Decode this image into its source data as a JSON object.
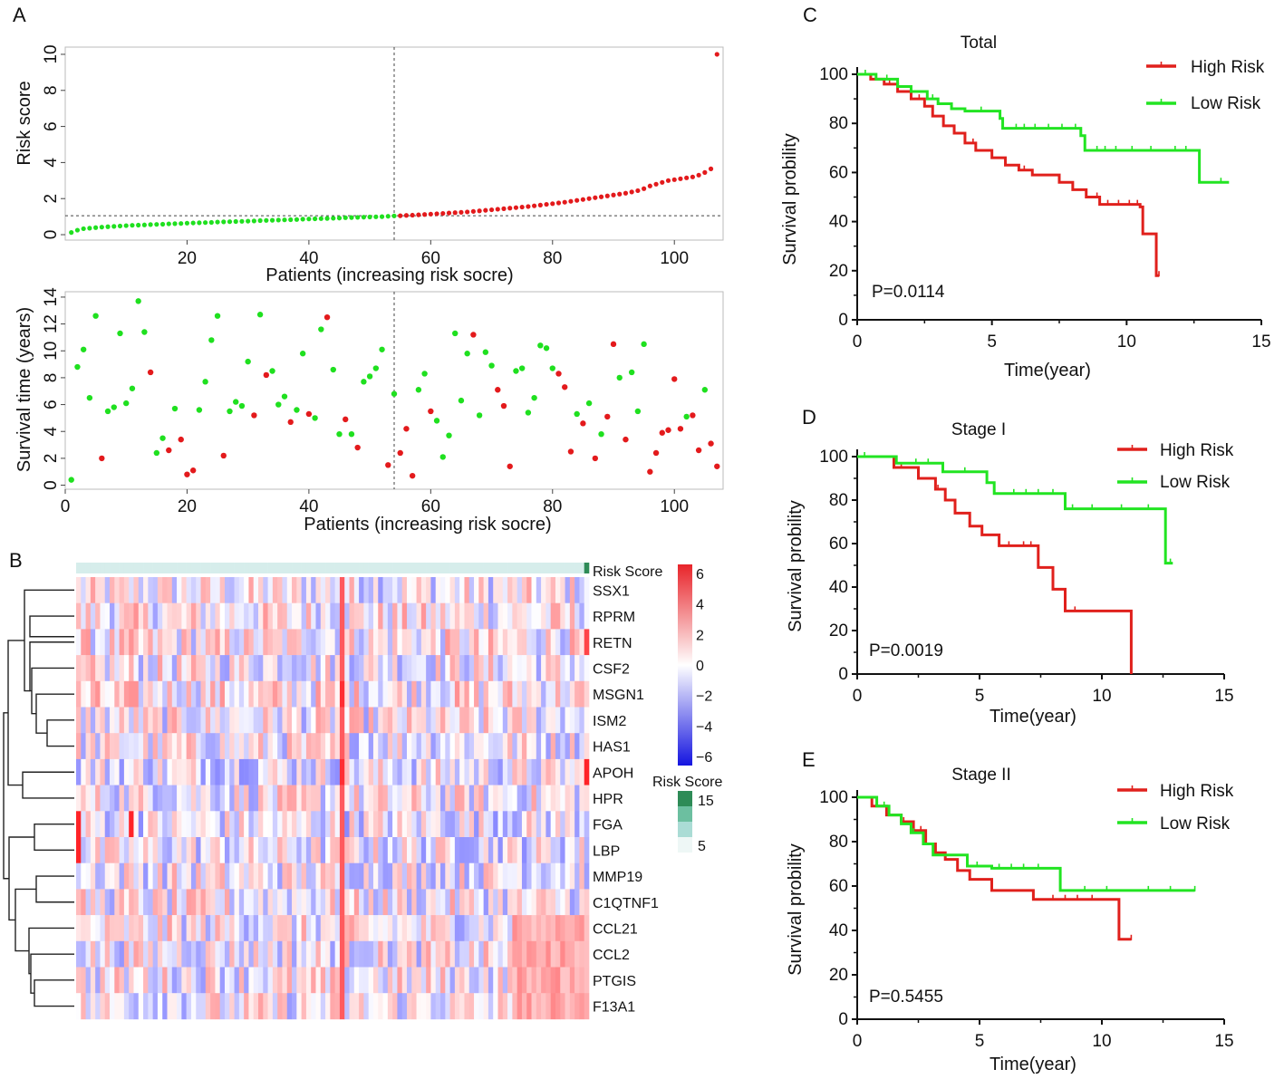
{
  "colors": {
    "high": "#e31a1c",
    "low": "#1fe01f",
    "km_high": "#e0201c",
    "km_low": "#22e422",
    "axis": "#222222",
    "heat_hi": "#e8242a",
    "heat_mid": "#ffffff",
    "heat_lo": "#1414e0",
    "rs_dark": "#2e8b57",
    "rs_light": "#eef7f6"
  },
  "panel_labels": [
    "A",
    "B",
    "C",
    "D",
    "E"
  ],
  "chart_data": [
    {
      "id": "A1",
      "type": "scatter",
      "xlabel": "Patients (increasing risk socre)",
      "ylabel": "Risk score",
      "xlim": [
        0,
        108
      ],
      "ylim": [
        -0.3,
        10.4
      ],
      "xticks": [
        20,
        40,
        60,
        80,
        100
      ],
      "yticks": [
        0,
        2,
        4,
        6,
        8,
        10
      ],
      "cutoff": {
        "x": 54,
        "y": 1.05
      },
      "low_count": 54,
      "risk_values": [
        0.12,
        0.25,
        0.33,
        0.36,
        0.39,
        0.42,
        0.44,
        0.46,
        0.48,
        0.5,
        0.52,
        0.53,
        0.54,
        0.56,
        0.57,
        0.58,
        0.6,
        0.61,
        0.62,
        0.64,
        0.65,
        0.66,
        0.67,
        0.68,
        0.7,
        0.71,
        0.72,
        0.73,
        0.74,
        0.75,
        0.76,
        0.78,
        0.79,
        0.8,
        0.81,
        0.82,
        0.83,
        0.84,
        0.86,
        0.87,
        0.88,
        0.89,
        0.9,
        0.91,
        0.92,
        0.94,
        0.95,
        0.96,
        0.97,
        0.98,
        0.99,
        1.0,
        1.02,
        1.04,
        1.05,
        1.07,
        1.08,
        1.1,
        1.12,
        1.14,
        1.16,
        1.18,
        1.2,
        1.22,
        1.24,
        1.26,
        1.29,
        1.32,
        1.35,
        1.38,
        1.41,
        1.44,
        1.47,
        1.5,
        1.53,
        1.56,
        1.6,
        1.64,
        1.68,
        1.72,
        1.76,
        1.8,
        1.85,
        1.9,
        1.95,
        2.0,
        2.05,
        2.1,
        2.15,
        2.2,
        2.25,
        2.3,
        2.37,
        2.44,
        2.55,
        2.7,
        2.8,
        2.9,
        3.0,
        3.05,
        3.1,
        3.15,
        3.2,
        3.3,
        3.45,
        3.65,
        10.0
      ]
    },
    {
      "id": "A2",
      "type": "scatter",
      "xlabel": "Patients (increasing risk socre)",
      "ylabel": "Survival time (years)",
      "xlim": [
        0,
        108
      ],
      "ylim": [
        -0.3,
        14.4
      ],
      "xticks": [
        0,
        20,
        40,
        60,
        80,
        100
      ],
      "yticks": [
        0,
        2,
        4,
        6,
        8,
        10,
        12,
        14
      ],
      "cutoff": {
        "x": 54
      },
      "points": [
        [
          1,
          0.4,
          0
        ],
        [
          2,
          8.8,
          0
        ],
        [
          3,
          10.1,
          0
        ],
        [
          4,
          6.5,
          0
        ],
        [
          5,
          12.6,
          0
        ],
        [
          6,
          2.0,
          1
        ],
        [
          7,
          5.5,
          0
        ],
        [
          8,
          5.8,
          0
        ],
        [
          9,
          11.3,
          0
        ],
        [
          10,
          6.1,
          0
        ],
        [
          11,
          7.2,
          0
        ],
        [
          12,
          13.7,
          0
        ],
        [
          13,
          11.4,
          0
        ],
        [
          14,
          8.4,
          1
        ],
        [
          15,
          2.4,
          0
        ],
        [
          16,
          3.5,
          0
        ],
        [
          17,
          2.6,
          1
        ],
        [
          18,
          5.7,
          0
        ],
        [
          19,
          3.4,
          1
        ],
        [
          20,
          0.8,
          1
        ],
        [
          21,
          1.1,
          1
        ],
        [
          22,
          5.6,
          0
        ],
        [
          23,
          7.7,
          0
        ],
        [
          24,
          10.8,
          0
        ],
        [
          25,
          12.6,
          0
        ],
        [
          26,
          2.2,
          1
        ],
        [
          27,
          5.5,
          0
        ],
        [
          28,
          6.2,
          0
        ],
        [
          29,
          5.9,
          0
        ],
        [
          30,
          9.2,
          0
        ],
        [
          31,
          5.2,
          1
        ],
        [
          32,
          12.7,
          0
        ],
        [
          33,
          8.2,
          1
        ],
        [
          34,
          8.5,
          0
        ],
        [
          35,
          6.0,
          0
        ],
        [
          36,
          6.6,
          0
        ],
        [
          37,
          4.7,
          1
        ],
        [
          38,
          5.6,
          0
        ],
        [
          39,
          9.8,
          0
        ],
        [
          40,
          5.3,
          1
        ],
        [
          41,
          5.0,
          0
        ],
        [
          42,
          11.6,
          0
        ],
        [
          43,
          12.5,
          1
        ],
        [
          44,
          8.6,
          0
        ],
        [
          45,
          3.8,
          0
        ],
        [
          46,
          4.9,
          1
        ],
        [
          47,
          3.8,
          0
        ],
        [
          48,
          2.8,
          1
        ],
        [
          49,
          7.7,
          0
        ],
        [
          50,
          8.1,
          0
        ],
        [
          51,
          8.7,
          0
        ],
        [
          52,
          10.1,
          0
        ],
        [
          53,
          1.5,
          1
        ],
        [
          54,
          6.8,
          0
        ],
        [
          55,
          2.4,
          1
        ],
        [
          56,
          4.2,
          1
        ],
        [
          57,
          0.7,
          1
        ],
        [
          58,
          7.1,
          0
        ],
        [
          59,
          8.3,
          0
        ],
        [
          60,
          5.5,
          1
        ],
        [
          61,
          4.8,
          0
        ],
        [
          62,
          2.1,
          0
        ],
        [
          63,
          3.7,
          0
        ],
        [
          64,
          11.3,
          0
        ],
        [
          65,
          6.3,
          0
        ],
        [
          66,
          9.8,
          0
        ],
        [
          67,
          11.2,
          1
        ],
        [
          68,
          5.2,
          0
        ],
        [
          69,
          9.9,
          0
        ],
        [
          70,
          8.9,
          0
        ],
        [
          71,
          7.1,
          1
        ],
        [
          72,
          5.9,
          1
        ],
        [
          73,
          1.4,
          1
        ],
        [
          74,
          8.5,
          0
        ],
        [
          75,
          8.7,
          0
        ],
        [
          76,
          5.4,
          0
        ],
        [
          77,
          6.5,
          0
        ],
        [
          78,
          10.4,
          0
        ],
        [
          79,
          10.2,
          0
        ],
        [
          80,
          8.7,
          0
        ],
        [
          81,
          8.3,
          1
        ],
        [
          82,
          7.3,
          1
        ],
        [
          83,
          2.5,
          1
        ],
        [
          84,
          5.3,
          0
        ],
        [
          85,
          4.6,
          1
        ],
        [
          86,
          6.1,
          0
        ],
        [
          87,
          2.0,
          1
        ],
        [
          88,
          3.8,
          0
        ],
        [
          89,
          5.1,
          1
        ],
        [
          90,
          10.5,
          1
        ],
        [
          91,
          8.0,
          0
        ],
        [
          92,
          3.4,
          1
        ],
        [
          93,
          8.4,
          0
        ],
        [
          94,
          5.5,
          0
        ],
        [
          95,
          10.5,
          0
        ],
        [
          96,
          1.0,
          1
        ],
        [
          97,
          2.4,
          1
        ],
        [
          98,
          3.9,
          1
        ],
        [
          99,
          4.1,
          1
        ],
        [
          100,
          7.9,
          1
        ],
        [
          101,
          4.2,
          1
        ],
        [
          102,
          5.1,
          0
        ],
        [
          103,
          5.2,
          1
        ],
        [
          104,
          2.6,
          1
        ],
        [
          105,
          7.1,
          0
        ],
        [
          106,
          3.1,
          1
        ],
        [
          107,
          1.4,
          1
        ]
      ]
    },
    {
      "id": "B",
      "type": "heatmap",
      "annotation_label": "Risk Score",
      "genes": [
        "SSX1",
        "RPRM",
        "RETN",
        "CSF2",
        "MSGN1",
        "ISM2",
        "HAS1",
        "APOH",
        "HPR",
        "FGA",
        "LBP",
        "MMP19",
        "C1QTNF1",
        "CCL21",
        "CCL2",
        "PTGIS",
        "F13A1"
      ],
      "n_columns": 107,
      "color_scale": {
        "ticks": [
          6,
          4,
          2,
          0,
          -2,
          -4,
          -6
        ]
      },
      "risk_legend": {
        "title": "Risk Score",
        "ticks": [
          15,
          5
        ]
      }
    },
    {
      "id": "C",
      "type": "line",
      "title": "Total",
      "xlabel": "Time(year)",
      "ylabel": "Survival probility",
      "xlim": [
        0,
        15
      ],
      "ylim": [
        0,
        100
      ],
      "xticks": [
        0,
        5,
        10,
        15
      ],
      "yticks": [
        0,
        20,
        40,
        60,
        80,
        100
      ],
      "pvalue": "P=0.0114",
      "series": [
        {
          "name": "High Risk",
          "steps": [
            [
              0,
              100
            ],
            [
              0.5,
              98
            ],
            [
              1,
              96
            ],
            [
              1.5,
              93
            ],
            [
              2,
              90
            ],
            [
              2.5,
              87
            ],
            [
              2.8,
              83
            ],
            [
              3.2,
              79
            ],
            [
              3.6,
              76
            ],
            [
              4,
              72
            ],
            [
              4.4,
              69
            ],
            [
              5,
              66
            ],
            [
              5.5,
              63
            ],
            [
              6,
              61
            ],
            [
              6.5,
              59
            ],
            [
              7.5,
              56
            ],
            [
              8,
              53
            ],
            [
              8.5,
              50
            ],
            [
              9,
              47
            ],
            [
              10.5,
              46
            ],
            [
              10.6,
              35
            ],
            [
              11.1,
              18
            ]
          ],
          "end": 11.2,
          "censors": [
            1.2,
            2.3,
            4.3,
            6.2,
            8.9,
            9.3,
            9.7,
            10.1,
            10.4,
            11.2
          ]
        },
        {
          "name": "Low Risk",
          "steps": [
            [
              0,
              100
            ],
            [
              0.7,
              98
            ],
            [
              1.5,
              95
            ],
            [
              2,
              93
            ],
            [
              2.6,
              90
            ],
            [
              3,
              88
            ],
            [
              3.5,
              86
            ],
            [
              4,
              85
            ],
            [
              5.3,
              82
            ],
            [
              5.4,
              78
            ],
            [
              8.3,
              75
            ],
            [
              8.45,
              69
            ],
            [
              12.7,
              56
            ]
          ],
          "end": 13.8,
          "censors": [
            0.3,
            1.1,
            2.8,
            4.6,
            5.9,
            6.2,
            6.6,
            7.1,
            7.6,
            8.1,
            8.9,
            9.2,
            9.6,
            10.2,
            10.9,
            11.8,
            12.2,
            13.5
          ]
        }
      ]
    },
    {
      "id": "D",
      "type": "line",
      "title": "Stage I",
      "xlabel": "Time(year)",
      "ylabel": "Survival probility",
      "xlim": [
        0,
        15
      ],
      "ylim": [
        0,
        100
      ],
      "xticks": [
        0,
        5,
        10,
        15
      ],
      "yticks": [
        0,
        20,
        40,
        60,
        80,
        100
      ],
      "pvalue": "P=0.0019",
      "series": [
        {
          "name": "High Risk",
          "steps": [
            [
              0,
              100
            ],
            [
              1.5,
              95
            ],
            [
              2.5,
              90
            ],
            [
              3.2,
              85
            ],
            [
              3.6,
              80
            ],
            [
              4,
              74
            ],
            [
              4.6,
              68
            ],
            [
              5.1,
              64
            ],
            [
              5.8,
              59
            ],
            [
              7.4,
              49
            ],
            [
              8.0,
              39
            ],
            [
              8.5,
              29
            ],
            [
              11.2,
              0
            ]
          ],
          "end": 11.2,
          "censors": [
            1.8,
            3.3,
            6.2,
            6.8,
            7.1,
            8.9
          ]
        },
        {
          "name": "Low Risk",
          "steps": [
            [
              0,
              100
            ],
            [
              1.6,
              97
            ],
            [
              3.5,
              93
            ],
            [
              5.3,
              88
            ],
            [
              5.6,
              83
            ],
            [
              8.5,
              76
            ],
            [
              12.6,
              51
            ]
          ],
          "end": 12.9,
          "censors": [
            0.3,
            2.4,
            2.9,
            4.4,
            6.4,
            6.9,
            7.4,
            8.0,
            8.8,
            9.6,
            10.8,
            11.9,
            12.8
          ]
        }
      ]
    },
    {
      "id": "E",
      "type": "line",
      "title": "Stage II",
      "xlabel": "Time(year)",
      "ylabel": "Survival probility",
      "xlim": [
        0,
        15
      ],
      "ylim": [
        0,
        100
      ],
      "xticks": [
        0,
        5,
        10,
        15
      ],
      "yticks": [
        0,
        20,
        40,
        60,
        80,
        100
      ],
      "pvalue": "P=0.5455",
      "series": [
        {
          "name": "High Risk",
          "steps": [
            [
              0,
              100
            ],
            [
              0.6,
              96
            ],
            [
              1.2,
              92
            ],
            [
              1.8,
              89
            ],
            [
              2.3,
              85
            ],
            [
              2.8,
              79
            ],
            [
              3.2,
              75
            ],
            [
              3.6,
              72
            ],
            [
              4.1,
              67
            ],
            [
              4.6,
              63
            ],
            [
              5.5,
              58
            ],
            [
              7.2,
              54
            ],
            [
              10.7,
              36
            ]
          ],
          "end": 11.2,
          "censors": [
            0.8,
            1.9,
            2.6,
            8.0,
            8.5,
            9.0,
            9.6,
            11.2
          ]
        },
        {
          "name": "Low Risk",
          "steps": [
            [
              0,
              100
            ],
            [
              0.8,
              96
            ],
            [
              1.3,
              92
            ],
            [
              1.8,
              88
            ],
            [
              2.2,
              84
            ],
            [
              2.7,
              79
            ],
            [
              3.1,
              74
            ],
            [
              4.5,
              69
            ],
            [
              5.5,
              68
            ],
            [
              8.3,
              58
            ]
          ],
          "end": 13.8,
          "censors": [
            1.1,
            2.3,
            4.9,
            5.8,
            6.3,
            6.8,
            7.4,
            9.3,
            10.2,
            11.9,
            12.8,
            13.8
          ]
        }
      ]
    }
  ]
}
